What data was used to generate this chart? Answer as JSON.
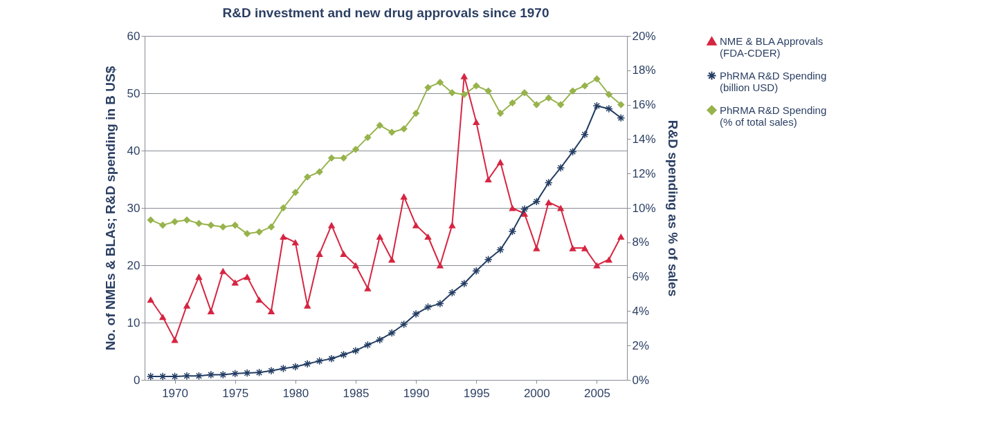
{
  "chart_data": {
    "type": "line",
    "title": "R&D investment and new drug approvals since 1970",
    "ylabel": "No. of NMEs & BLAs; R&D spending in B US$",
    "y2label": "R&D spending as % of sales",
    "x": [
      1968,
      1969,
      1970,
      1971,
      1972,
      1973,
      1974,
      1975,
      1976,
      1977,
      1978,
      1979,
      1980,
      1981,
      1982,
      1983,
      1984,
      1985,
      1986,
      1987,
      1988,
      1989,
      1990,
      1991,
      1992,
      1993,
      1994,
      1995,
      1996,
      1997,
      1998,
      1999,
      2000,
      2001,
      2002,
      2003,
      2004,
      2005,
      2006,
      2007
    ],
    "xlim": [
      1967.5,
      2007.5
    ],
    "xticks": [
      1970,
      1975,
      1980,
      1985,
      1990,
      1995,
      2000,
      2005
    ],
    "ylim": [
      0,
      60
    ],
    "yticks": [
      0,
      10,
      20,
      30,
      40,
      50,
      60
    ],
    "y2lim": [
      0,
      20
    ],
    "y2ticks": [
      {
        "value": 0,
        "label": "0%"
      },
      {
        "value": 2,
        "label": "2%"
      },
      {
        "value": 4,
        "label": "4%"
      },
      {
        "value": 6,
        "label": "6%"
      },
      {
        "value": 8,
        "label": "8%"
      },
      {
        "value": 10,
        "label": "10%"
      },
      {
        "value": 12,
        "label": "12%"
      },
      {
        "value": 14,
        "label": "14%"
      },
      {
        "value": 16,
        "label": "16%"
      },
      {
        "value": 18,
        "label": "18%"
      },
      {
        "value": 20,
        "label": "20%"
      }
    ],
    "grid": "y",
    "legend": "right",
    "line_style": "solid",
    "series": [
      {
        "name": "NME & BLA Approvals\n(FDA-CDER)",
        "color": "#d62541",
        "marker": "triangle",
        "values": [
          14,
          11,
          7,
          13,
          18,
          12,
          19,
          17,
          18,
          14,
          12,
          25,
          24,
          13,
          22,
          27,
          22,
          20,
          16,
          25,
          21,
          32,
          27,
          25,
          20,
          27,
          53,
          45,
          35,
          38,
          30,
          29,
          23,
          31,
          30,
          23,
          23,
          20,
          21,
          25
        ]
      },
      {
        "name": "PhRMA R&D Spending\n(billion USD)",
        "color": "#233d63",
        "marker": "cross",
        "values": [
          0.6,
          0.6,
          0.6,
          0.7,
          0.7,
          0.9,
          0.9,
          1.1,
          1.2,
          1.3,
          1.6,
          2.0,
          2.3,
          2.8,
          3.3,
          3.7,
          4.4,
          5.1,
          6.1,
          7.0,
          8.2,
          9.7,
          11.5,
          12.7,
          13.3,
          15.2,
          16.8,
          19.0,
          21.0,
          22.7,
          25.9,
          29.8,
          31.1,
          34.4,
          37.0,
          39.8,
          42.8,
          47.8,
          47.3,
          45.7
        ]
      },
      {
        "name": "PhRMA R&D Spending\n(% of total sales)",
        "color": "#97b34c",
        "marker": "diamond",
        "axis": "y2",
        "values": [
          9.3,
          9.0,
          9.2,
          9.3,
          9.1,
          9.0,
          8.9,
          9.0,
          8.5,
          8.6,
          8.9,
          10.0,
          10.9,
          11.8,
          12.1,
          12.9,
          12.9,
          13.4,
          14.1,
          14.8,
          14.4,
          14.6,
          15.5,
          17.0,
          17.3,
          16.7,
          16.6,
          17.1,
          16.8,
          15.5,
          16.1,
          16.7,
          16.0,
          16.4,
          16.0,
          16.8,
          17.1,
          17.5,
          16.6,
          16.0
        ]
      }
    ]
  }
}
